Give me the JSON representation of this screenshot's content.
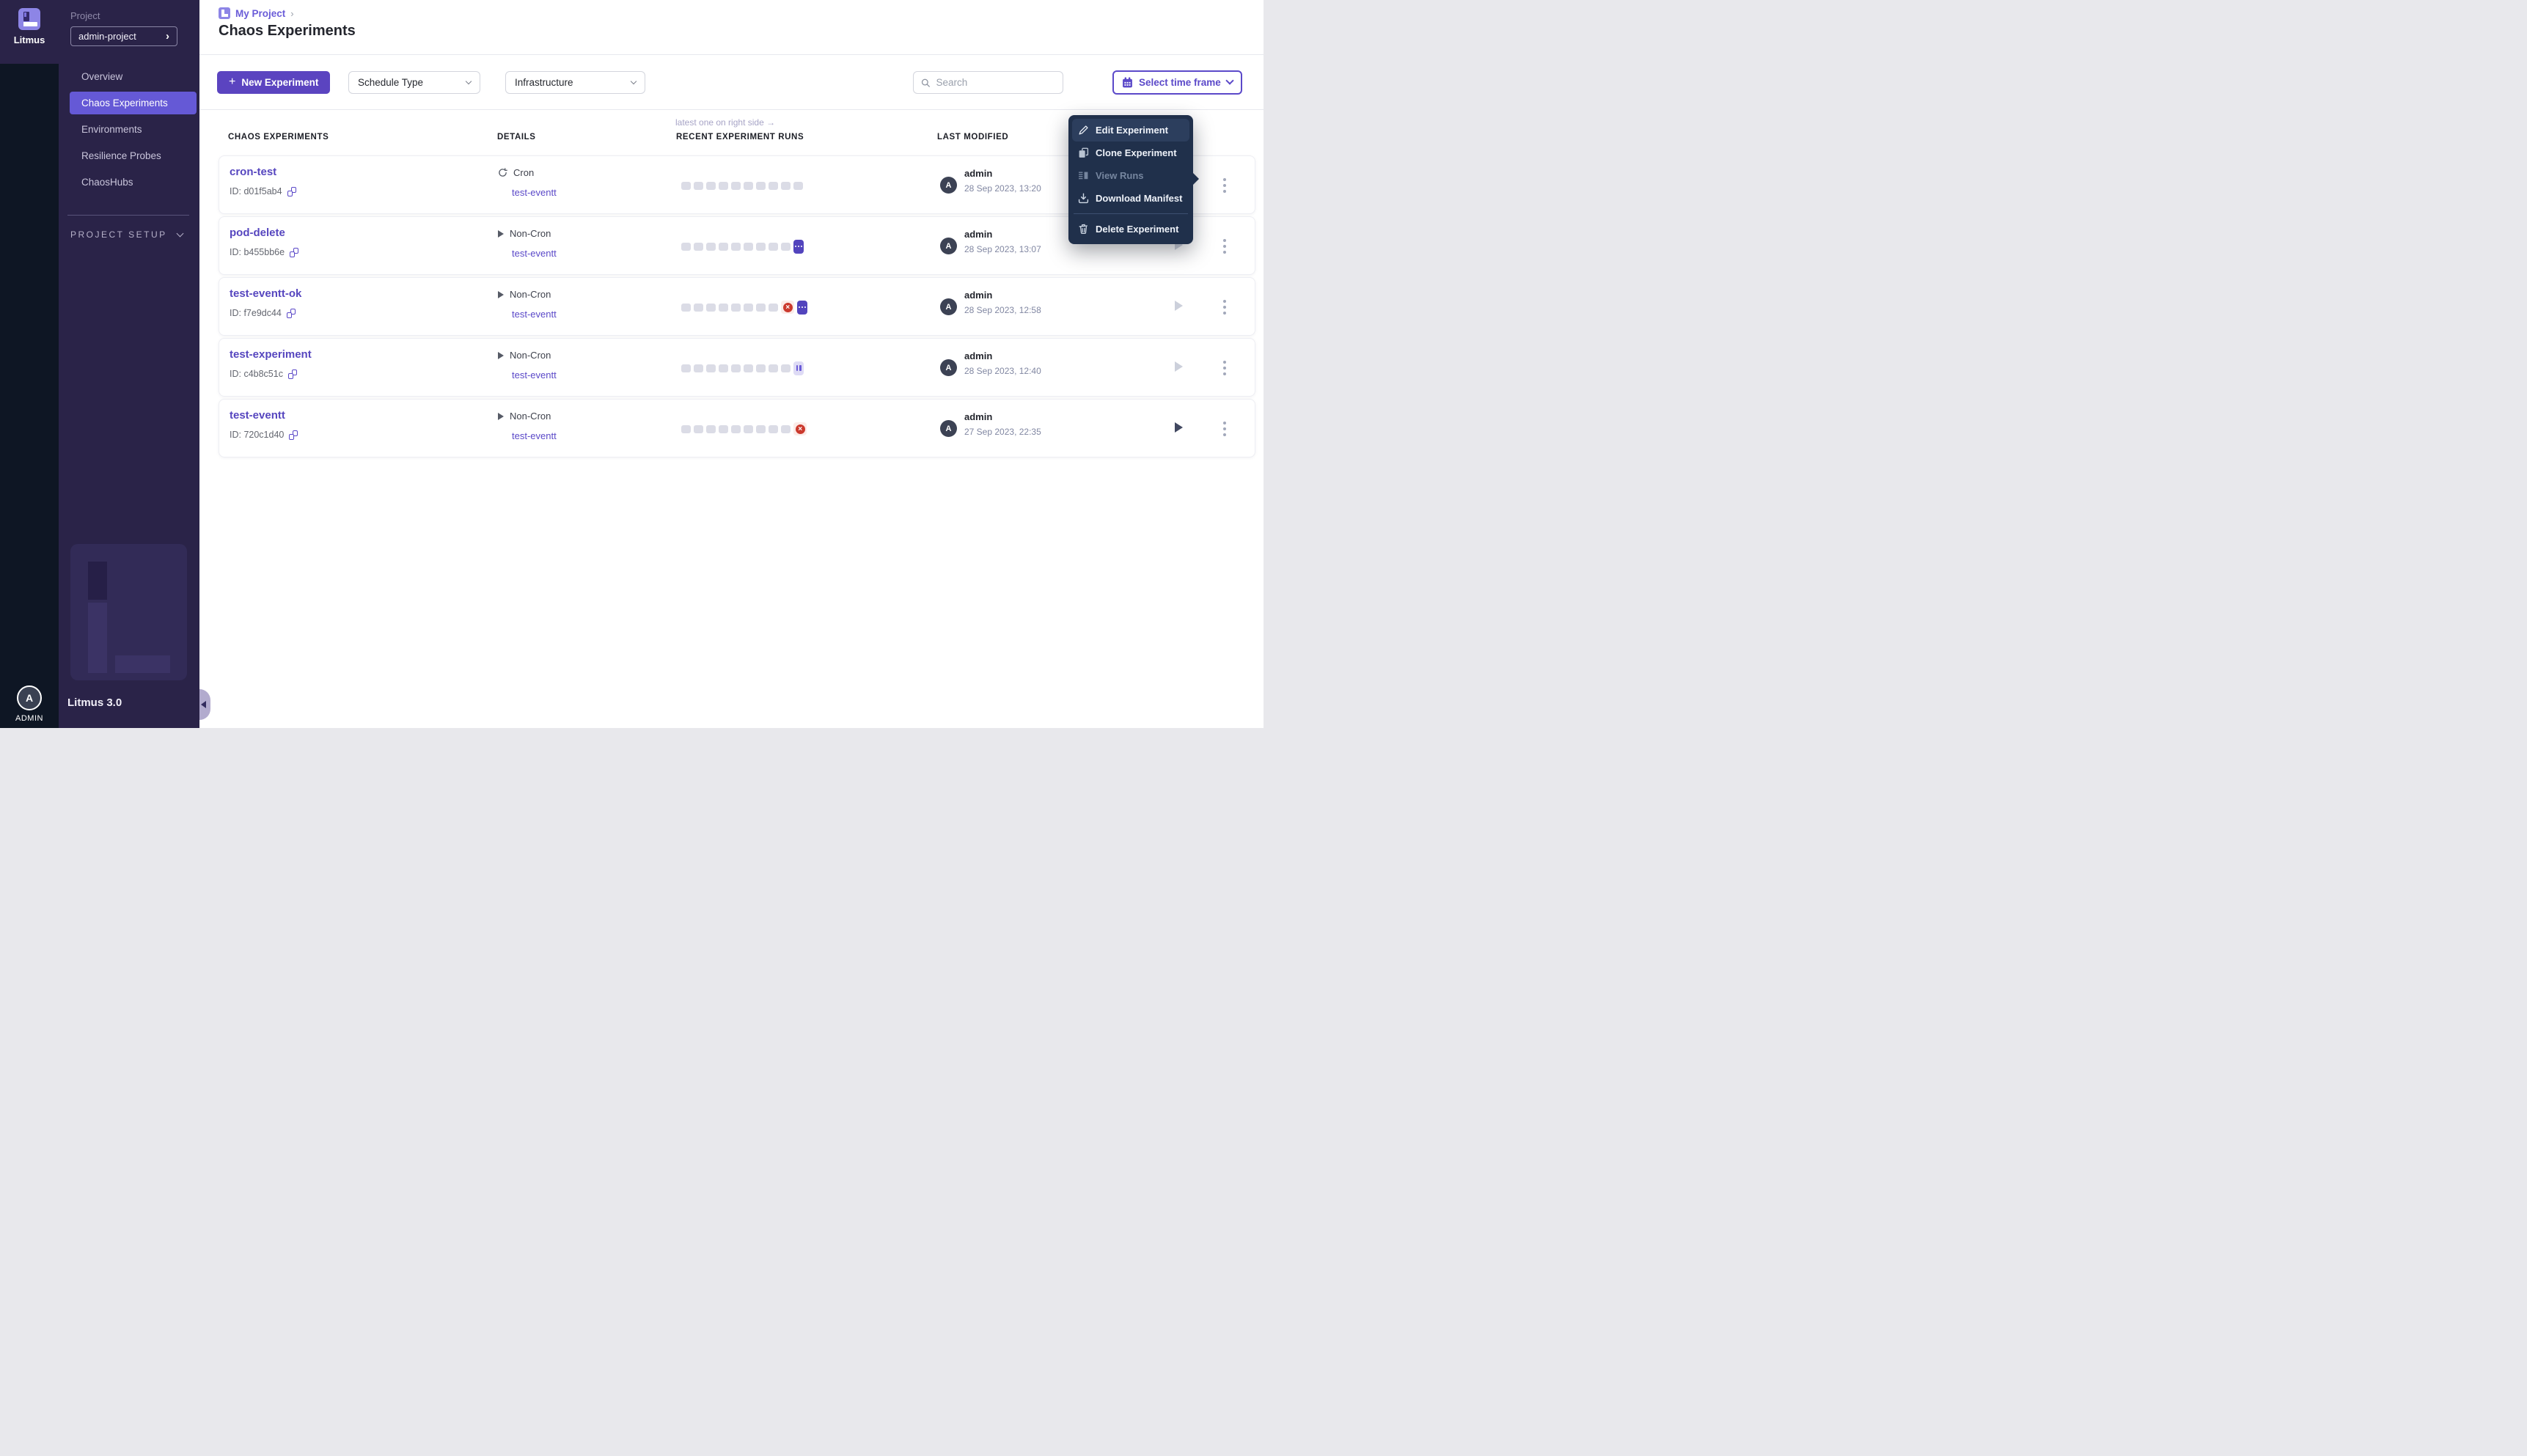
{
  "sidebar": {
    "brand": "Litmus",
    "project_label": "Project",
    "project_value": "admin-project",
    "nav_items": [
      {
        "label": "Overview"
      },
      {
        "label": "Chaos Experiments",
        "active": true
      },
      {
        "label": "Environments"
      },
      {
        "label": "Resilience Probes"
      },
      {
        "label": "ChaosHubs"
      }
    ],
    "section_label": "PROJECT SETUP",
    "version": "Litmus 3.0",
    "user": {
      "initial": "A",
      "label": "ADMIN"
    }
  },
  "header": {
    "breadcrumb": "My Project",
    "breadcrumb_sep": "›",
    "title": "Chaos Experiments"
  },
  "toolbar": {
    "plus": "+",
    "new_experiment_label": "New Experiment",
    "schedule_type_label": "Schedule Type",
    "infrastructure_label": "Infrastructure",
    "search_placeholder": "Search",
    "time_frame_label": "Select time frame"
  },
  "table": {
    "runs_hint": "latest one on right side →",
    "columns": [
      "CHAOS EXPERIMENTS",
      "DETAILS",
      "RECENT EXPERIMENT RUNS",
      "LAST MODIFIED"
    ],
    "rows": [
      {
        "name": "cron-test",
        "id": "ID: d01f5ab4",
        "schedule": "Cron",
        "schedule_kind": "cron",
        "infra": "test-eventt",
        "runs": [
          "empty",
          "empty",
          "empty",
          "empty",
          "empty",
          "empty",
          "empty",
          "empty",
          "empty",
          "empty"
        ],
        "user": "admin",
        "user_initial": "A",
        "modified": "28 Sep 2023, 13:20",
        "play_state": "disabled"
      },
      {
        "name": "pod-delete",
        "id": "ID: b455bb6e",
        "schedule": "Non-Cron",
        "schedule_kind": "non-cron",
        "infra": "test-eventt",
        "runs": [
          "empty",
          "empty",
          "empty",
          "empty",
          "empty",
          "empty",
          "empty",
          "empty",
          "empty",
          "running"
        ],
        "user": "admin",
        "user_initial": "A",
        "modified": "28 Sep 2023, 13:07",
        "play_state": "disabled"
      },
      {
        "name": "test-eventt-ok",
        "id": "ID: f7e9dc44",
        "schedule": "Non-Cron",
        "schedule_kind": "non-cron",
        "infra": "test-eventt",
        "runs": [
          "empty",
          "empty",
          "empty",
          "empty",
          "empty",
          "empty",
          "empty",
          "empty",
          "failed",
          "running"
        ],
        "user": "admin",
        "user_initial": "A",
        "modified": "28 Sep 2023, 12:58",
        "play_state": "disabled"
      },
      {
        "name": "test-experiment",
        "id": "ID: c4b8c51c",
        "schedule": "Non-Cron",
        "schedule_kind": "non-cron",
        "infra": "test-eventt",
        "runs": [
          "empty",
          "empty",
          "empty",
          "empty",
          "empty",
          "empty",
          "empty",
          "empty",
          "empty",
          "paused"
        ],
        "user": "admin",
        "user_initial": "A",
        "modified": "28 Sep 2023, 12:40",
        "play_state": "disabled"
      },
      {
        "name": "test-eventt",
        "id": "ID: 720c1d40",
        "schedule": "Non-Cron",
        "schedule_kind": "non-cron",
        "infra": "test-eventt",
        "runs": [
          "empty",
          "empty",
          "empty",
          "empty",
          "empty",
          "empty",
          "empty",
          "empty",
          "empty",
          "failed"
        ],
        "user": "admin",
        "user_initial": "A",
        "modified": "27 Sep 2023, 22:35",
        "play_state": "enabled"
      }
    ]
  },
  "context_menu": {
    "items": [
      {
        "label": "Edit Experiment",
        "state": "active"
      },
      {
        "label": "Clone Experiment",
        "state": "normal"
      },
      {
        "label": "View Runs",
        "state": "disabled"
      },
      {
        "label": "Download Manifest",
        "state": "normal"
      },
      {
        "label": "Delete Experiment",
        "state": "normal"
      }
    ]
  },
  "colors": {
    "accent": "#5b44c0",
    "nav_active": "#6559d6",
    "link": "#5a48c8",
    "run_running": "#5244bd",
    "run_failed": "#cb392d",
    "run_paused_bg": "#dedbf5",
    "menu_bg": "#20304b"
  }
}
